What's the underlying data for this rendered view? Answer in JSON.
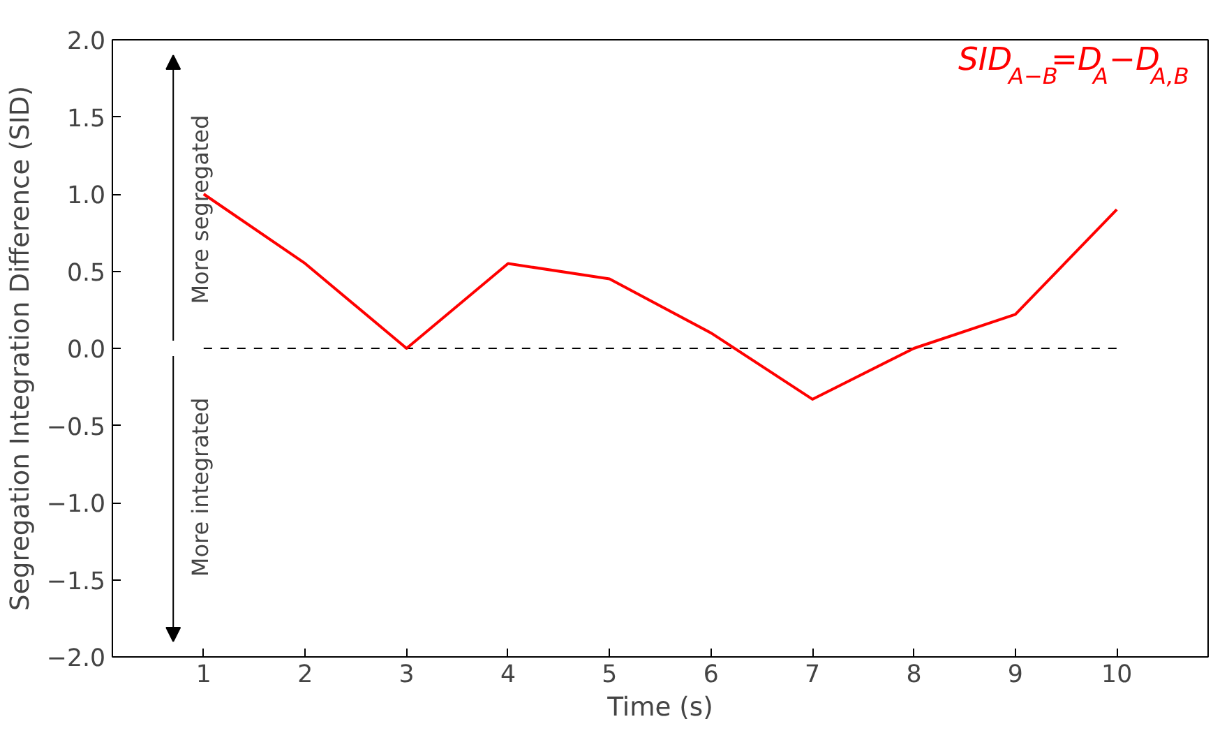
{
  "chart_data": {
    "type": "line",
    "xlabel": "Time (s)",
    "ylabel": "Segregation Integration Difference (SID)",
    "x": [
      1,
      2,
      3,
      4,
      5,
      6,
      7,
      8,
      9,
      10
    ],
    "series": [
      {
        "color": "#ff0000",
        "values": [
          1.0,
          0.55,
          0.0,
          0.55,
          0.45,
          0.1,
          -0.33,
          0.0,
          0.22,
          0.9
        ]
      }
    ],
    "xlim": [
      0.1,
      10.9
    ],
    "ylim": [
      -2.0,
      2.0
    ],
    "xticks": [
      1,
      2,
      3,
      4,
      5,
      6,
      7,
      8,
      9,
      10
    ],
    "yticks": [
      {
        "value": -2.0,
        "label": "−2.0"
      },
      {
        "value": -1.5,
        "label": "−1.5"
      },
      {
        "value": -1.0,
        "label": "−1.0"
      },
      {
        "value": -0.5,
        "label": "−0.5"
      },
      {
        "value": 0.0,
        "label": "0.0"
      },
      {
        "value": 0.5,
        "label": "0.5"
      },
      {
        "value": 1.0,
        "label": "1.0"
      },
      {
        "value": 1.5,
        "label": "1.5"
      },
      {
        "value": 2.0,
        "label": "2.0"
      }
    ],
    "ref_lines": [
      {
        "axis": "y",
        "value": 0,
        "color": "#000000",
        "line_style": "dashed"
      }
    ],
    "annotations": [
      "More segregated",
      "More integrated",
      "SID$_{A−B}$=D$_{A}$−D$_{A,B}$"
    ],
    "grid": false,
    "marker": "none",
    "line_style": "solid"
  }
}
